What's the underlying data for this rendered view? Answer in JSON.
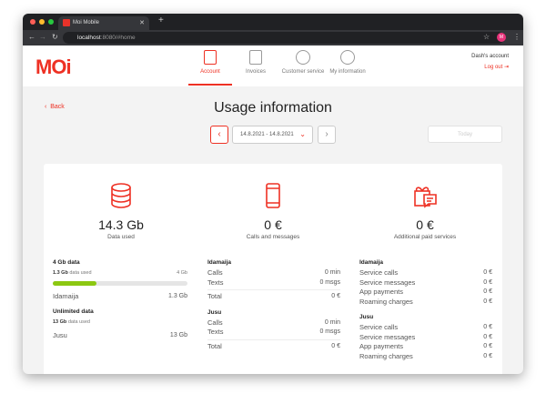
{
  "browser": {
    "tab_title": "Moi Mobile",
    "url_host": "localhost",
    "url_rest": ":8080/#home",
    "avatar": "M"
  },
  "header": {
    "logo": "MOi",
    "nav": [
      {
        "label": "Account",
        "active": true,
        "icon": "sim-card-icon"
      },
      {
        "label": "Invoices",
        "icon": "invoice-icon"
      },
      {
        "label": "Customer service",
        "icon": "headset-smiley-icon"
      },
      {
        "label": "My information",
        "icon": "smiley-icon"
      }
    ],
    "account": "Dash's account",
    "logout": "Log out"
  },
  "page": {
    "back": "Back",
    "title": "Usage information",
    "date_range": "14.8.2021 - 14.8.2021",
    "today": "Today"
  },
  "summary": [
    {
      "value": "14.3 Gb",
      "label": "Data used",
      "icon": "database-icon"
    },
    {
      "value": "0 €",
      "label": "Calls and messages",
      "icon": "phone-icon"
    },
    {
      "value": "0 €",
      "label": "Additional paid services",
      "icon": "gift-chat-icon"
    }
  ],
  "data": {
    "plan1": {
      "title": "4 Gb data",
      "used": "1.3 Gb",
      "used_label": "data used",
      "limit": "4 Gb",
      "progress_percent": 32.5,
      "user": "Idamaija",
      "user_value": "1.3 Gb"
    },
    "plan2": {
      "title": "Unlimited data",
      "used": "13 Gb",
      "used_label": "data used",
      "user": "Jusu",
      "user_value": "13 Gb"
    }
  },
  "calls": [
    {
      "name": "Idamaija",
      "rows": [
        [
          "Calls",
          "0 min"
        ],
        [
          "Texts",
          "0 msgs"
        ]
      ],
      "total": [
        "Total",
        "0 €"
      ]
    },
    {
      "name": "Jusu",
      "rows": [
        [
          "Calls",
          "0 min"
        ],
        [
          "Texts",
          "0 msgs"
        ]
      ],
      "total": [
        "Total",
        "0 €"
      ]
    }
  ],
  "services": [
    {
      "name": "Idamaija",
      "rows": [
        [
          "Service calls",
          "0 €"
        ],
        [
          "Service messages",
          "0 €"
        ],
        [
          "App payments",
          "0 €"
        ],
        [
          "Roaming charges",
          "0 €"
        ]
      ]
    },
    {
      "name": "Jusu",
      "rows": [
        [
          "Service calls",
          "0 €"
        ],
        [
          "Service messages",
          "0 €"
        ],
        [
          "App payments",
          "0 €"
        ],
        [
          "Roaming charges",
          "0 €"
        ]
      ]
    }
  ],
  "colors": {
    "brand": "#ee3124",
    "progress": "#8cc811"
  }
}
